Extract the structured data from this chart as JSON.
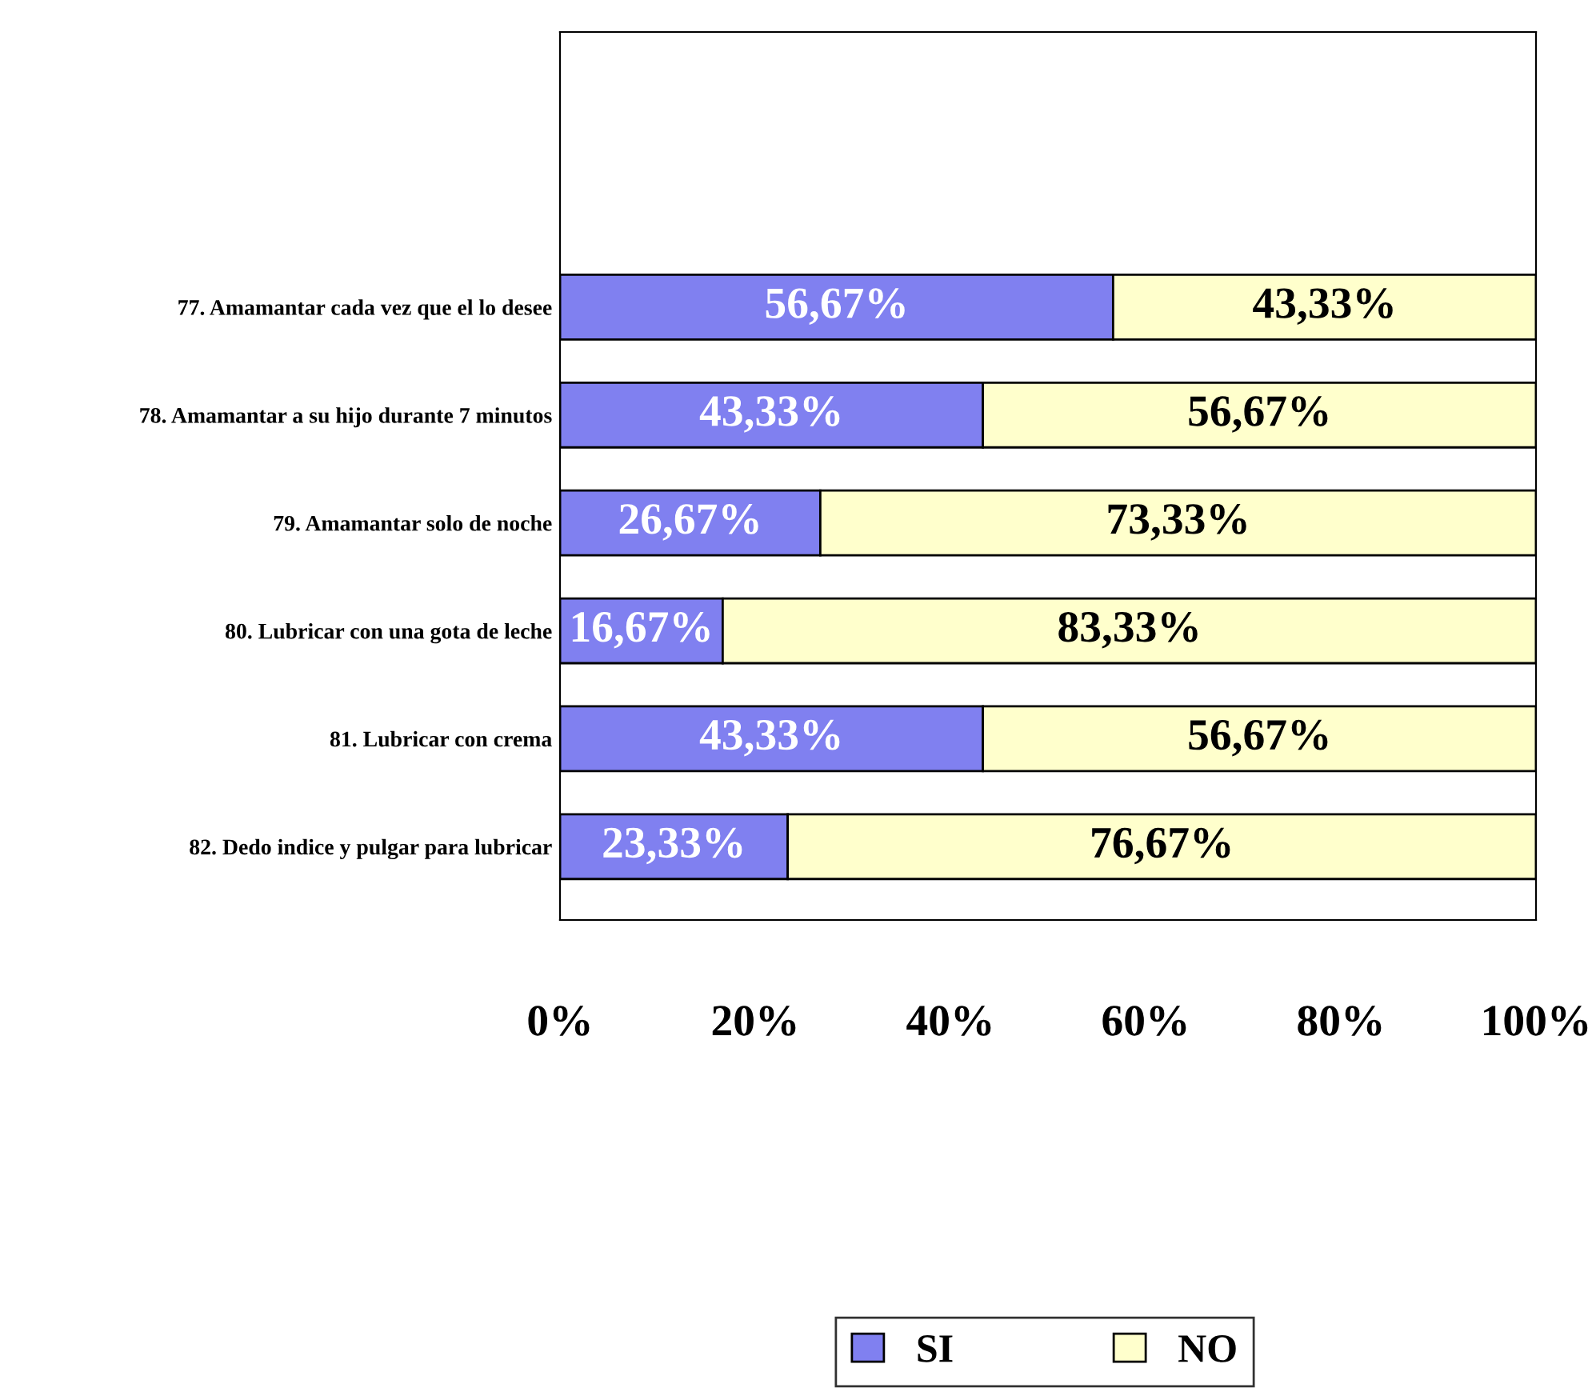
{
  "chart_data": {
    "type": "bar",
    "orientation": "horizontal",
    "stacked": true,
    "categories": [
      "77. Amamantar cada vez que el lo desee",
      "78. Amamantar a su hijo durante 7 minutos",
      "79. Amamantar solo de noche",
      "80. Lubricar con una gota de leche",
      "81. Lubricar con crema",
      "82. Dedo indice y pulgar para lubricar"
    ],
    "series": [
      {
        "name": "SI",
        "color": "#8080f0",
        "values": [
          56.67,
          43.33,
          26.67,
          16.67,
          43.33,
          23.33
        ],
        "value_labels": [
          "56,67%",
          "43,33%",
          "26,67%",
          "16,67%",
          "43,33%",
          "23,33%"
        ]
      },
      {
        "name": "NO",
        "color": "#ffffcc",
        "values": [
          43.33,
          56.67,
          73.33,
          83.33,
          56.67,
          76.67
        ],
        "value_labels": [
          "43,33%",
          "56,67%",
          "73,33%",
          "83,33%",
          "56,67%",
          "76,67%"
        ]
      }
    ],
    "xlim": [
      0,
      100
    ],
    "xticks": [
      {
        "value": 0,
        "label": "0%"
      },
      {
        "value": 20,
        "label": "20%"
      },
      {
        "value": 40,
        "label": "40%"
      },
      {
        "value": 60,
        "label": "60%"
      },
      {
        "value": 80,
        "label": "80%"
      },
      {
        "value": 100,
        "label": "100%"
      }
    ],
    "grid": false,
    "legend": "bottom"
  }
}
